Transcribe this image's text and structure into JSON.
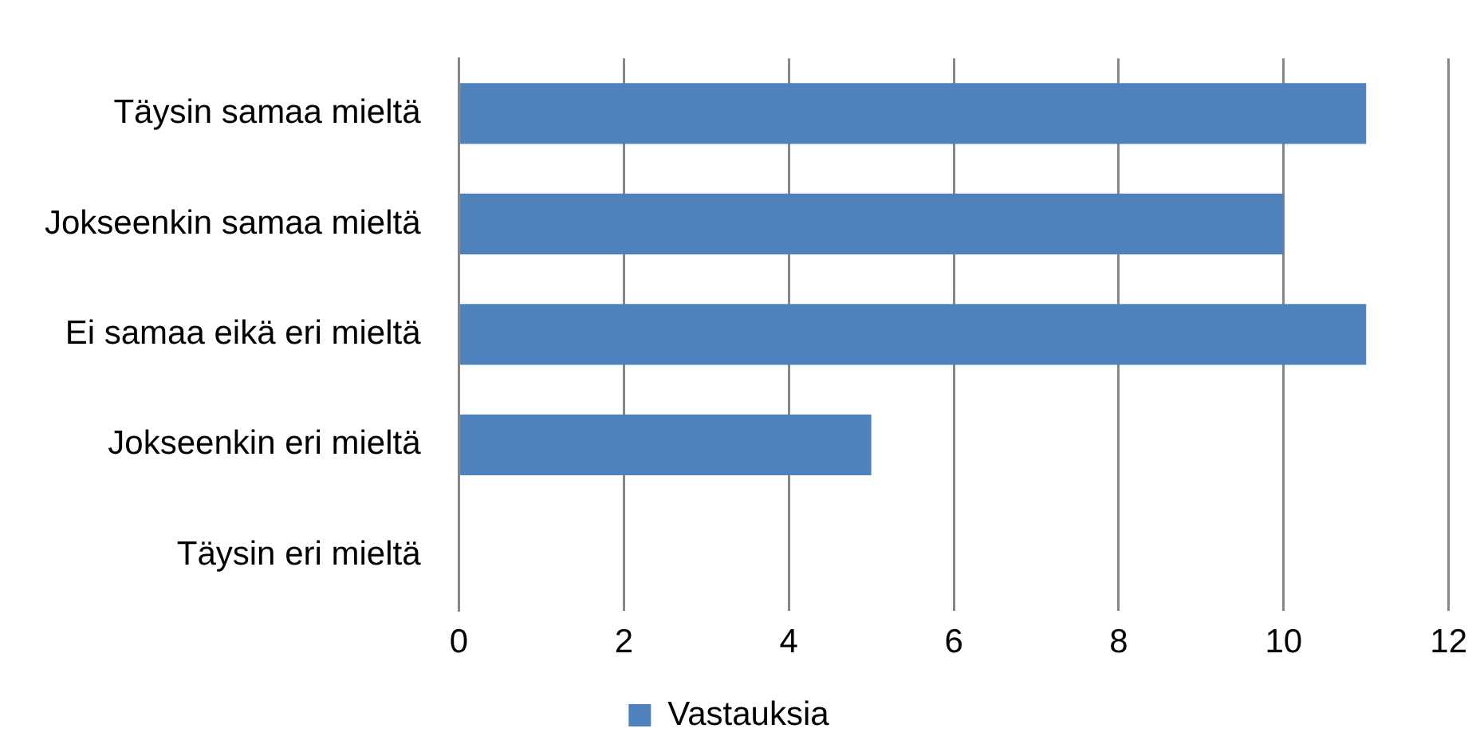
{
  "chart_data": {
    "type": "bar",
    "orientation": "horizontal",
    "categories": [
      "Täysin samaa mieltä",
      "Jokseenkin samaa mieltä",
      "Ei samaa eikä eri mieltä",
      "Jokseenkin eri mieltä",
      "Täysin eri mieltä"
    ],
    "series": [
      {
        "name": "Vastauksia",
        "color": "#4f81bd",
        "values": [
          11,
          10,
          11,
          5,
          0
        ]
      }
    ],
    "xlim": [
      0,
      12
    ],
    "xticks": [
      0,
      2,
      4,
      6,
      8,
      10,
      12
    ],
    "grid": "x",
    "legend": "bottom"
  }
}
